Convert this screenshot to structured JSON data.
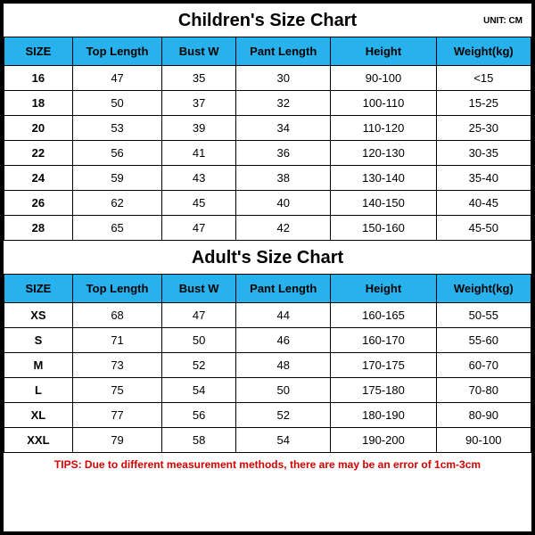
{
  "unit_label": "UNIT: CM",
  "columns": [
    "SIZE",
    "Top Length",
    "Bust W",
    "Pant Length",
    "Height",
    "Weight(kg)"
  ],
  "header_bg": "#27b2ee",
  "border_color": "#000000",
  "children": {
    "title": "Children's Size Chart",
    "rows": [
      {
        "size": "16",
        "top": "47",
        "bust": "35",
        "pant": "30",
        "height": "90-100",
        "weight": "<15"
      },
      {
        "size": "18",
        "top": "50",
        "bust": "37",
        "pant": "32",
        "height": "100-110",
        "weight": "15-25"
      },
      {
        "size": "20",
        "top": "53",
        "bust": "39",
        "pant": "34",
        "height": "110-120",
        "weight": "25-30"
      },
      {
        "size": "22",
        "top": "56",
        "bust": "41",
        "pant": "36",
        "height": "120-130",
        "weight": "30-35"
      },
      {
        "size": "24",
        "top": "59",
        "bust": "43",
        "pant": "38",
        "height": "130-140",
        "weight": "35-40"
      },
      {
        "size": "26",
        "top": "62",
        "bust": "45",
        "pant": "40",
        "height": "140-150",
        "weight": "40-45"
      },
      {
        "size": "28",
        "top": "65",
        "bust": "47",
        "pant": "42",
        "height": "150-160",
        "weight": "45-50"
      }
    ]
  },
  "adult": {
    "title": "Adult's Size Chart",
    "rows": [
      {
        "size": "XS",
        "top": "68",
        "bust": "47",
        "pant": "44",
        "height": "160-165",
        "weight": "50-55"
      },
      {
        "size": "S",
        "top": "71",
        "bust": "50",
        "pant": "46",
        "height": "160-170",
        "weight": "55-60"
      },
      {
        "size": "M",
        "top": "73",
        "bust": "52",
        "pant": "48",
        "height": "170-175",
        "weight": "60-70"
      },
      {
        "size": "L",
        "top": "75",
        "bust": "54",
        "pant": "50",
        "height": "175-180",
        "weight": "70-80"
      },
      {
        "size": "XL",
        "top": "77",
        "bust": "56",
        "pant": "52",
        "height": "180-190",
        "weight": "80-90"
      },
      {
        "size": "XXL",
        "top": "79",
        "bust": "58",
        "pant": "54",
        "height": "190-200",
        "weight": "90-100"
      }
    ]
  },
  "tips": "TIPS: Due to different measurement methods, there are may be an error of 1cm-3cm"
}
